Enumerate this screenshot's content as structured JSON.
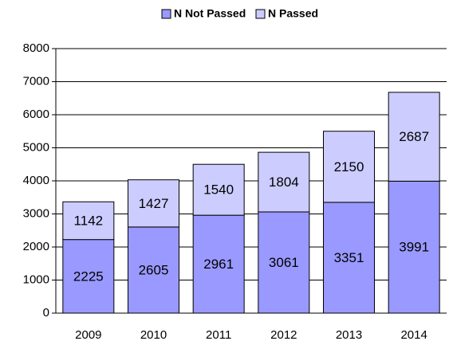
{
  "chart_data": {
    "type": "stacked_bar",
    "categories": [
      "2009",
      "2010",
      "2011",
      "2012",
      "2013",
      "2014"
    ],
    "series": [
      {
        "name": "N Not Passed",
        "color": "#9999ff",
        "values": [
          2225,
          2605,
          2961,
          3061,
          3351,
          3991
        ]
      },
      {
        "name": "N Passed",
        "color": "#ccccff",
        "values": [
          1142,
          1427,
          1540,
          1804,
          2150,
          2687
        ]
      }
    ],
    "ylim": [
      0,
      8000
    ],
    "yticks": [
      0,
      1000,
      2000,
      3000,
      4000,
      5000,
      6000,
      7000,
      8000
    ],
    "grid": true,
    "legend": "top"
  }
}
